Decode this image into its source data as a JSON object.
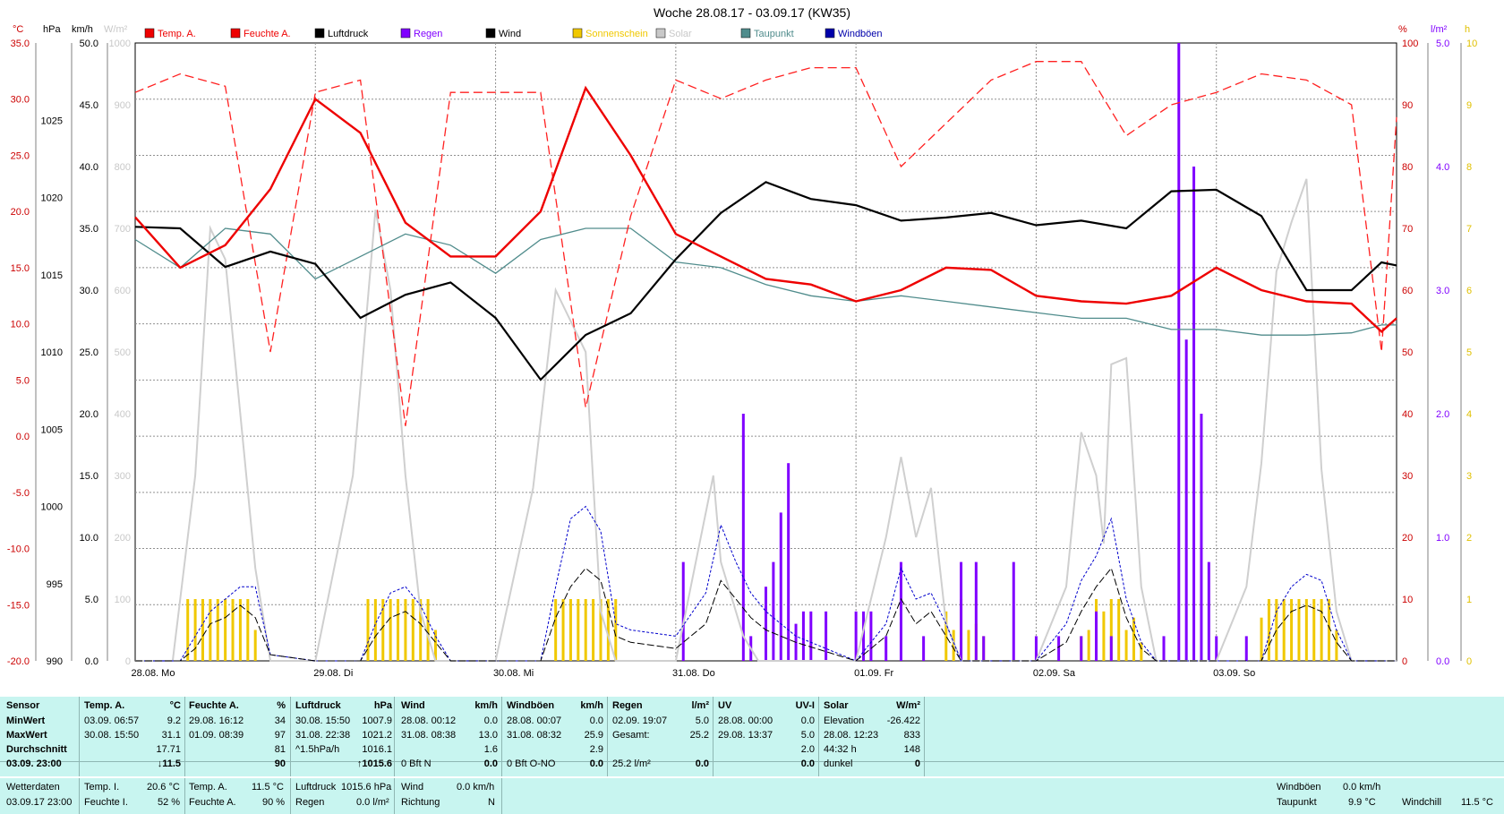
{
  "chart_data": {
    "type": "line",
    "title": "Woche 28.08.17 - 03.09.17 (KW35)",
    "x_day_labels": [
      "28.08.  Mo",
      "29.08.  Di",
      "30.08.  Mi",
      "31.08.  Do",
      "01.09.  Fr",
      "02.09.  Sa",
      "03.09.  So"
    ],
    "axes": {
      "temp": {
        "unit": "°C",
        "range": [
          -20,
          35
        ],
        "ticks": [
          "35.0",
          "30.0",
          "25.0",
          "20.0",
          "15.0",
          "10.0",
          "5.0",
          "0.0",
          "-5.0",
          "-10.0",
          "-15.0",
          "-20.0"
        ],
        "color": "#cc0000"
      },
      "pressure": {
        "unit": "hPa",
        "range": [
          990,
          1030
        ],
        "ticks": [
          "1025",
          "1020",
          "1015",
          "1010",
          "1005",
          "1000",
          "995",
          "990"
        ],
        "color": "#000000"
      },
      "wind": {
        "unit": "km/h",
        "range": [
          0,
          50
        ],
        "ticks": [
          "50.0",
          "45.0",
          "40.0",
          "35.0",
          "30.0",
          "25.0",
          "20.0",
          "15.0",
          "10.0",
          "5.0",
          "0.0"
        ],
        "color": "#000000"
      },
      "solar": {
        "unit": "W/m²",
        "range": [
          0,
          1000
        ],
        "ticks": [
          "1000",
          "900",
          "800",
          "700",
          "600",
          "500",
          "400",
          "300",
          "200",
          "100",
          "0"
        ],
        "color": "#c8c8c8"
      },
      "humidity": {
        "unit": "%",
        "range": [
          0,
          100
        ],
        "ticks": [
          "100",
          "90",
          "80",
          "70",
          "60",
          "50",
          "40",
          "30",
          "20",
          "10",
          "0"
        ],
        "color": "#cc0000"
      },
      "rain": {
        "unit": "l/m²",
        "range": [
          0,
          5
        ],
        "ticks": [
          "5.0",
          "4.0",
          "3.0",
          "2.0",
          "1.0",
          "0.0"
        ],
        "color": "#8000ff"
      },
      "sunshine": {
        "unit": "h",
        "range": [
          0,
          10
        ],
        "ticks": [
          "10",
          "9",
          "8",
          "7",
          "6",
          "5",
          "4",
          "3",
          "2",
          "1",
          "0"
        ],
        "color": "#e0c000"
      }
    },
    "legend": [
      {
        "name": "Temp. A.",
        "color": "#ee0000"
      },
      {
        "name": "Feuchte A.",
        "color": "#ee0000"
      },
      {
        "name": "Luftdruck",
        "color": "#000000"
      },
      {
        "name": "Regen",
        "color": "#8000ff"
      },
      {
        "name": "Wind",
        "color": "#000000"
      },
      {
        "name": "Sonnenschein",
        "color": "#f0c800"
      },
      {
        "name": "Solar",
        "color": "#c8c8c8"
      },
      {
        "name": "Taupunkt",
        "color": "#508c8c"
      },
      {
        "name": "Windböen",
        "color": "#0000aa"
      }
    ],
    "series": [
      {
        "name": "Temp. A.",
        "unit": "°C",
        "x_hours": [
          0,
          6,
          12,
          18,
          24,
          30,
          36,
          42,
          48,
          54,
          60,
          66,
          72,
          78,
          84,
          90,
          96,
          102,
          108,
          114,
          120,
          126,
          132,
          138,
          144,
          150,
          156,
          162,
          166,
          168
        ],
        "values": [
          19.5,
          15,
          17,
          22,
          30,
          27,
          19,
          16,
          16,
          20,
          31,
          25,
          18,
          16,
          14,
          13.5,
          12,
          13,
          15,
          14.8,
          12.5,
          12,
          11.8,
          12.5,
          15,
          13,
          12,
          11.8,
          9.3,
          10.5
        ]
      },
      {
        "name": "Feuchte A.",
        "unit": "%",
        "x_hours": [
          0,
          6,
          12,
          18,
          24,
          30,
          36,
          42,
          48,
          54,
          60,
          66,
          72,
          78,
          84,
          90,
          96,
          102,
          108,
          114,
          120,
          126,
          132,
          138,
          144,
          150,
          156,
          162,
          166,
          168
        ],
        "values": [
          92,
          95,
          93,
          50,
          92,
          94,
          38,
          92,
          92,
          92,
          41,
          72,
          94,
          91,
          94,
          96,
          96,
          80,
          87,
          94,
          97,
          97,
          85,
          90,
          92,
          95,
          94,
          90,
          50,
          88
        ]
      },
      {
        "name": "Luftdruck",
        "unit": "hPa",
        "x_hours": [
          0,
          6,
          12,
          18,
          24,
          30,
          36,
          42,
          48,
          54,
          60,
          66,
          72,
          78,
          84,
          90,
          96,
          102,
          108,
          114,
          120,
          126,
          132,
          138,
          144,
          150,
          156,
          162,
          166,
          168
        ],
        "values": [
          1018.1,
          1018.0,
          1015.5,
          1016.5,
          1015.7,
          1012.2,
          1013.7,
          1014.5,
          1012.2,
          1008.2,
          1011.1,
          1012.5,
          1016.0,
          1019.0,
          1021.0,
          1019.9,
          1019.5,
          1018.5,
          1018.7,
          1019.0,
          1018.2,
          1018.5,
          1018.0,
          1020.4,
          1020.5,
          1018.8,
          1014.0,
          1014.0,
          1015.8,
          1015.6
        ]
      },
      {
        "name": "Taupunkt",
        "unit": "°C",
        "x_hours": [
          0,
          6,
          12,
          18,
          24,
          30,
          36,
          42,
          48,
          54,
          60,
          66,
          72,
          78,
          84,
          90,
          96,
          102,
          108,
          114,
          120,
          126,
          132,
          138,
          144,
          150,
          156,
          162,
          166,
          168
        ],
        "values": [
          17.5,
          15,
          18.5,
          18,
          14,
          16,
          18,
          17,
          14.5,
          17.5,
          18.5,
          18.5,
          15.5,
          15,
          13.5,
          12.5,
          12,
          12.5,
          12,
          11.5,
          11,
          10.5,
          10.5,
          9.5,
          9.5,
          9,
          9,
          9.2,
          9.9,
          9.9
        ]
      },
      {
        "name": "Solar",
        "unit": "W/m²",
        "x_hours": [
          0,
          5,
          8,
          10,
          12,
          14,
          16,
          18,
          24,
          29,
          32,
          34,
          36,
          38,
          40,
          42,
          48,
          53,
          56,
          58,
          60,
          62,
          64,
          66,
          72,
          75,
          77,
          78,
          80,
          81,
          83,
          96,
          100,
          102,
          104,
          106,
          108,
          110,
          120,
          124,
          126,
          128,
          129,
          130,
          132,
          134,
          136,
          144,
          148,
          150,
          152,
          154,
          156,
          158,
          160,
          162,
          168
        ],
        "values": [
          0,
          0,
          300,
          700,
          650,
          400,
          150,
          0,
          0,
          300,
          730,
          600,
          300,
          80,
          0,
          0,
          0,
          280,
          600,
          550,
          500,
          80,
          0,
          0,
          0,
          180,
          300,
          160,
          80,
          40,
          0,
          0,
          200,
          330,
          200,
          280,
          60,
          0,
          0,
          120,
          370,
          300,
          190,
          480,
          490,
          120,
          0,
          0,
          120,
          320,
          630,
          710,
          780,
          310,
          80,
          0,
          0
        ]
      },
      {
        "name": "Wind",
        "unit": "km/h",
        "x_hours": [
          0,
          6,
          8,
          10,
          12,
          14,
          16,
          18,
          24,
          30,
          32,
          34,
          36,
          38,
          40,
          42,
          48,
          54,
          56,
          58,
          60,
          62,
          64,
          66,
          72,
          76,
          78,
          80,
          82,
          84,
          86,
          88,
          96,
          100,
          102,
          104,
          106,
          108,
          110,
          120,
          124,
          126,
          128,
          130,
          132,
          134,
          136,
          144,
          150,
          152,
          154,
          156,
          158,
          160,
          162,
          168
        ],
        "values": [
          0,
          0,
          1,
          3,
          3.5,
          4.5,
          3.5,
          0.5,
          0,
          0,
          2,
          3.5,
          4,
          3,
          1.5,
          0,
          0,
          0,
          3.5,
          6,
          7.5,
          6.5,
          2,
          1.5,
          1,
          3,
          6.5,
          5,
          3.5,
          2.5,
          2,
          1.5,
          0,
          2,
          5,
          3,
          4,
          2,
          0,
          0,
          1.5,
          4,
          6,
          7.5,
          3.5,
          1,
          0,
          0,
          0,
          2.5,
          4,
          4.5,
          4,
          1.5,
          0,
          0
        ]
      },
      {
        "name": "Windböen",
        "unit": "km/h",
        "x_hours": [
          0,
          6,
          8,
          10,
          12,
          14,
          16,
          18,
          24,
          30,
          32,
          34,
          36,
          38,
          40,
          42,
          48,
          54,
          56,
          58,
          60,
          62,
          64,
          66,
          72,
          76,
          78,
          80,
          82,
          84,
          86,
          88,
          96,
          100,
          102,
          104,
          106,
          108,
          110,
          120,
          124,
          126,
          128,
          130,
          132,
          134,
          136,
          144,
          150,
          152,
          154,
          156,
          158,
          160,
          162,
          168
        ],
        "values": [
          0,
          0,
          2,
          4,
          5,
          6,
          6,
          0.5,
          0,
          0,
          3,
          5.5,
          6,
          4.5,
          2,
          0,
          0,
          0,
          6,
          11.5,
          12.5,
          10.5,
          3,
          2.5,
          2,
          5.5,
          11,
          8,
          5.5,
          4,
          3,
          2,
          0,
          3,
          7.5,
          5,
          5.5,
          3,
          0,
          0,
          3,
          6.5,
          8.5,
          11.5,
          5,
          1.5,
          0,
          0,
          0,
          4,
          6,
          7,
          6.5,
          2.5,
          0,
          0
        ]
      },
      {
        "name": "Regen",
        "unit": "l/m²",
        "x_hours": [
          73,
          81,
          82,
          84,
          85,
          86,
          87,
          88,
          89,
          90,
          92,
          96,
          97,
          98,
          100,
          102,
          105,
          110,
          112,
          113,
          117,
          120,
          123,
          126,
          128,
          130,
          137,
          139,
          140,
          141,
          142,
          143,
          144,
          148
        ],
        "values": [
          0.8,
          2.0,
          0.2,
          0.6,
          0.8,
          1.2,
          1.6,
          0.3,
          0.4,
          0.4,
          0.4,
          0.4,
          0.4,
          0.4,
          0.2,
          0.8,
          0.2,
          0.8,
          0.8,
          0.2,
          0.8,
          0.2,
          0.2,
          0.2,
          0.4,
          0.2,
          0.2,
          5.0,
          2.6,
          4.0,
          2.0,
          0.8,
          0.2,
          0.2
        ]
      },
      {
        "name": "Sonnenschein",
        "unit": "h",
        "x_hours": [
          7,
          8,
          9,
          10,
          11,
          12,
          13,
          14,
          15,
          16,
          31,
          32,
          33,
          34,
          35,
          36,
          37,
          38,
          39,
          40,
          56,
          57,
          58,
          59,
          60,
          61,
          62,
          63,
          64,
          108,
          109,
          110,
          111,
          112,
          113,
          126,
          127,
          128,
          129,
          130,
          131,
          132,
          133,
          134,
          150,
          151,
          152,
          153,
          154,
          155,
          156,
          157,
          158,
          159,
          160
        ],
        "values": [
          1,
          1,
          1,
          1,
          1,
          1,
          1,
          1,
          1,
          0.5,
          1,
          1,
          1,
          1,
          1,
          1,
          1,
          1,
          1,
          0.5,
          1,
          1,
          1,
          1,
          1,
          1,
          1,
          1,
          1,
          0.8,
          0.5,
          1,
          0.5,
          0.6,
          0.4,
          0.4,
          0.5,
          1,
          0.8,
          1,
          1,
          0.5,
          0.7,
          0.3,
          0.7,
          1,
          1,
          1,
          1,
          1,
          1,
          1,
          1,
          1,
          0.5
        ]
      }
    ]
  },
  "table": {
    "headers": [
      {
        "label": "Sensor",
        "unit": ""
      },
      {
        "label": "Temp. A.",
        "unit": "°C"
      },
      {
        "label": "Feuchte A.",
        "unit": "%"
      },
      {
        "label": "Luftdruck",
        "unit": "hPa"
      },
      {
        "label": "Wind",
        "unit": "km/h"
      },
      {
        "label": "Windböen",
        "unit": "km/h"
      },
      {
        "label": "Regen",
        "unit": "l/m²"
      },
      {
        "label": "UV",
        "unit": "UV-I"
      },
      {
        "label": "Solar",
        "unit": "W/m²"
      }
    ],
    "row_labels": [
      "MinWert",
      "MaxWert",
      "Durchschnitt",
      "03.09.  23:00"
    ],
    "temp": [
      [
        "03.09.  06:57",
        "9.2"
      ],
      [
        "30.08.  15:50",
        "31.1"
      ],
      [
        "",
        "17.71"
      ],
      [
        "",
        "↓11.5"
      ]
    ],
    "hum": [
      [
        "29.08.  16:12",
        "34"
      ],
      [
        "01.09.  08:39",
        "97"
      ],
      [
        "",
        "81"
      ],
      [
        "",
        "90"
      ]
    ],
    "press": [
      [
        "30.08.  15:50",
        "1007.9"
      ],
      [
        "31.08.  22:38",
        "1021.2"
      ],
      [
        "^1.5hPa/h",
        "1016.1"
      ],
      [
        "",
        "↑1015.6"
      ]
    ],
    "wind": [
      [
        "28.08.  00:12",
        "0.0"
      ],
      [
        "31.08.  08:38",
        "13.0"
      ],
      [
        "",
        "1.6"
      ],
      [
        "0 Bft N",
        "0.0"
      ]
    ],
    "gust": [
      [
        "28.08.  00:07",
        "0.0"
      ],
      [
        "31.08.  08:32",
        "25.9"
      ],
      [
        "",
        "2.9"
      ],
      [
        "0 Bft O-NO",
        "0.0"
      ]
    ],
    "rain": [
      [
        "02.09.  19:07",
        "5.0"
      ],
      [
        "Gesamt:",
        "25.2"
      ],
      [
        "",
        ""
      ],
      [
        "25.2 l/m²",
        "0.0"
      ]
    ],
    "uv": [
      [
        "28.08.  00:00",
        "0.0"
      ],
      [
        "29.08.  13:37",
        "5.0"
      ],
      [
        "",
        "2.0"
      ],
      [
        "",
        "0.0"
      ]
    ],
    "solar": [
      [
        "Elevation",
        "-26.422"
      ],
      [
        "28.08.  12:23",
        "833"
      ],
      [
        "44:32 h",
        "148"
      ],
      [
        "dunkel",
        "0"
      ]
    ]
  },
  "footer": {
    "left_title": "Wetterdaten",
    "left_time": "03.09.17 23:00",
    "temp_i_label": "Temp. I.",
    "temp_i": "20.6 °C",
    "hum_i_label": "Feuchte I.",
    "hum_i": "52 %",
    "temp_a_label": "Temp. A.",
    "temp_a": "11.5 °C",
    "hum_a_label": "Feuchte A.",
    "hum_a": "90 %",
    "press_label": "Luftdruck",
    "press": "1015.6 hPa",
    "rain_label": "Regen",
    "rain": "0.0 l/m²",
    "wind_label": "Wind",
    "wind": "0.0 km/h",
    "dir_label": "Richtung",
    "dir": "N",
    "gust_label": "Windböen",
    "gust": "0.0 km/h",
    "dew_label": "Taupunkt",
    "dew": "9.9 °C",
    "chill_label": "Windchill",
    "chill": "11.5 °C"
  }
}
